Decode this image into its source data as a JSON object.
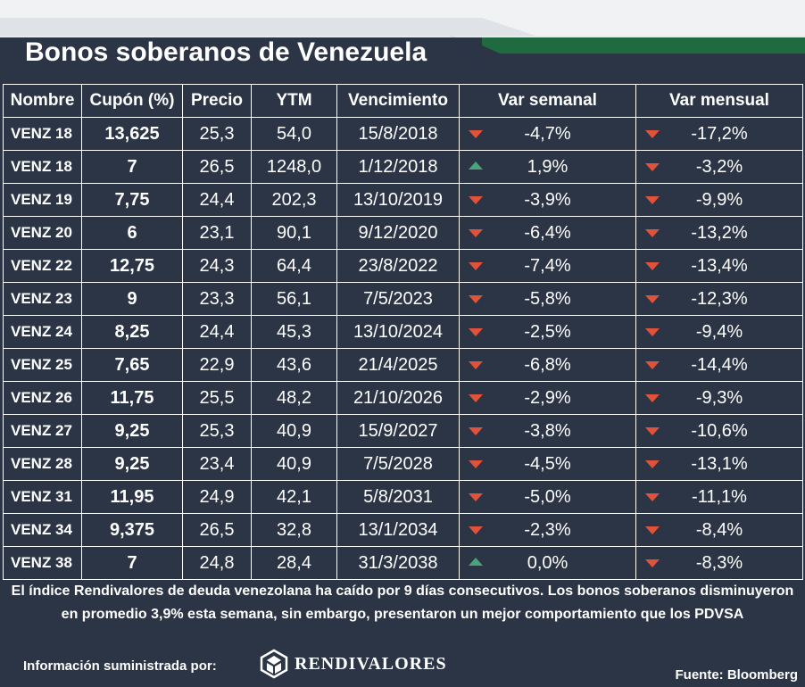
{
  "title": "Bonos soberanos de Venezuela",
  "columns": [
    "Nombre",
    "Cupón (%)",
    "Precio",
    "YTM",
    "Vencimiento",
    "Var semanal",
    "Var mensual"
  ],
  "rows": [
    {
      "name": "VENZ 18",
      "coupon": "13,625",
      "price": "25,3",
      "ytm": "54,0",
      "maturity": "15/8/2018",
      "weekly": "-4,7%",
      "weekly_dir": "down",
      "monthly": "-17,2%",
      "monthly_dir": "down"
    },
    {
      "name": "VENZ 18",
      "coupon": "7",
      "price": "26,5",
      "ytm": "1248,0",
      "maturity": "1/12/2018",
      "weekly": "1,9%",
      "weekly_dir": "up",
      "monthly": "-3,2%",
      "monthly_dir": "down"
    },
    {
      "name": "VENZ 19",
      "coupon": "7,75",
      "price": "24,4",
      "ytm": "202,3",
      "maturity": "13/10/2019",
      "weekly": "-3,9%",
      "weekly_dir": "down",
      "monthly": "-9,9%",
      "monthly_dir": "down"
    },
    {
      "name": "VENZ 20",
      "coupon": "6",
      "price": "23,1",
      "ytm": "90,1",
      "maturity": "9/12/2020",
      "weekly": "-6,4%",
      "weekly_dir": "down",
      "monthly": "-13,2%",
      "monthly_dir": "down"
    },
    {
      "name": "VENZ 22",
      "coupon": "12,75",
      "price": "24,3",
      "ytm": "64,4",
      "maturity": "23/8/2022",
      "weekly": "-7,4%",
      "weekly_dir": "down",
      "monthly": "-13,4%",
      "monthly_dir": "down"
    },
    {
      "name": "VENZ 23",
      "coupon": "9",
      "price": "23,3",
      "ytm": "56,1",
      "maturity": "7/5/2023",
      "weekly": "-5,8%",
      "weekly_dir": "down",
      "monthly": "-12,3%",
      "monthly_dir": "down"
    },
    {
      "name": "VENZ 24",
      "coupon": "8,25",
      "price": "24,4",
      "ytm": "45,3",
      "maturity": "13/10/2024",
      "weekly": "-2,5%",
      "weekly_dir": "down",
      "monthly": "-9,4%",
      "monthly_dir": "down"
    },
    {
      "name": "VENZ 25",
      "coupon": "7,65",
      "price": "22,9",
      "ytm": "43,6",
      "maturity": "21/4/2025",
      "weekly": "-6,8%",
      "weekly_dir": "down",
      "monthly": "-14,4%",
      "monthly_dir": "down"
    },
    {
      "name": "VENZ 26",
      "coupon": "11,75",
      "price": "25,5",
      "ytm": "48,2",
      "maturity": "21/10/2026",
      "weekly": "-2,9%",
      "weekly_dir": "down",
      "monthly": "-9,3%",
      "monthly_dir": "down"
    },
    {
      "name": "VENZ 27",
      "coupon": "9,25",
      "price": "25,3",
      "ytm": "40,9",
      "maturity": "15/9/2027",
      "weekly": "-3,8%",
      "weekly_dir": "down",
      "monthly": "-10,6%",
      "monthly_dir": "down"
    },
    {
      "name": "VENZ 28",
      "coupon": "9,25",
      "price": "23,4",
      "ytm": "40,9",
      "maturity": "7/5/2028",
      "weekly": "-4,5%",
      "weekly_dir": "down",
      "monthly": "-13,1%",
      "monthly_dir": "down"
    },
    {
      "name": "VENZ 31",
      "coupon": "11,95",
      "price": "24,9",
      "ytm": "42,1",
      "maturity": "5/8/2031",
      "weekly": "-5,0%",
      "weekly_dir": "down",
      "monthly": "-11,1%",
      "monthly_dir": "down"
    },
    {
      "name": "VENZ 34",
      "coupon": "9,375",
      "price": "26,5",
      "ytm": "32,8",
      "maturity": "13/1/2034",
      "weekly": "-2,3%",
      "weekly_dir": "down",
      "monthly": "-8,4%",
      "monthly_dir": "down"
    },
    {
      "name": "VENZ 38",
      "coupon": "7",
      "price": "24,8",
      "ytm": "28,4",
      "maturity": "31/3/2038",
      "weekly": "0,0%",
      "weekly_dir": "up",
      "monthly": "-8,3%",
      "monthly_dir": "down"
    }
  ],
  "note": "El índice Rendivalores de deuda venezolana ha caído por 9 días consecutivos. Los bonos soberanos disminuyeron en promedio 3,9% esta semana, sin embargo, presentaron un mejor comportamiento que los PDVSA",
  "supplied_by": "Información suministrada por:",
  "logo_text": "RENDIVALORES",
  "source": "Fuente: Bloomberg",
  "colors": {
    "background": "#2b3546",
    "header_band": "#e8eaee",
    "accent_green": "#1f6b3f",
    "down": "#e0533a",
    "up": "#4aa37a"
  }
}
